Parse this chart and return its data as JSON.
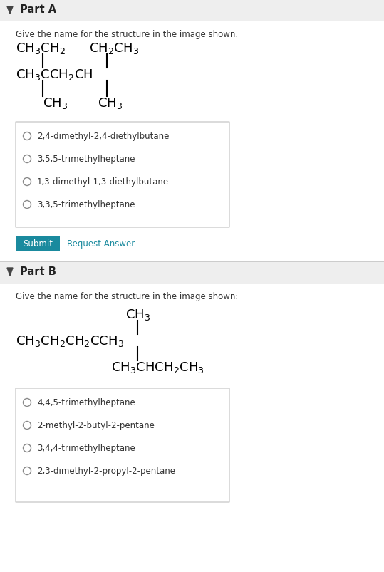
{
  "bg_color": "#ffffff",
  "header_bg": "#eeeeee",
  "part_a_header": "Part A",
  "part_b_header": "Part B",
  "instruction": "Give the name for the structure in the image shown:",
  "part_a_options": [
    "2,4-dimethyl-2,4-diethylbutane",
    "3,5,5-trimethylheptane",
    "1,3-dimethyl-1,3-diethylbutane",
    "3,3,5-trimethylheptane"
  ],
  "part_b_options": [
    "4,4,5-trimethylheptane",
    "2-methyl-2-butyl-2-pentane",
    "3,4,4-trimethylheptane",
    "2,3-dimethyl-2-propyl-2-pentane"
  ],
  "submit_color": "#1a8a9e",
  "submit_text": "Submit",
  "request_answer_text": "Request Answer",
  "link_color": "#1a8a9e",
  "arrow_color": "#444444",
  "text_color": "#333333",
  "option_text_color": "#333333",
  "header_text_color": "#222222",
  "box_border_color": "#cccccc",
  "separator_color": "#cccccc",
  "font_size_header": 10.5,
  "font_size_instruction": 8.5,
  "font_size_structure": 13,
  "font_size_options": 8.5,
  "font_size_submit": 8.5
}
